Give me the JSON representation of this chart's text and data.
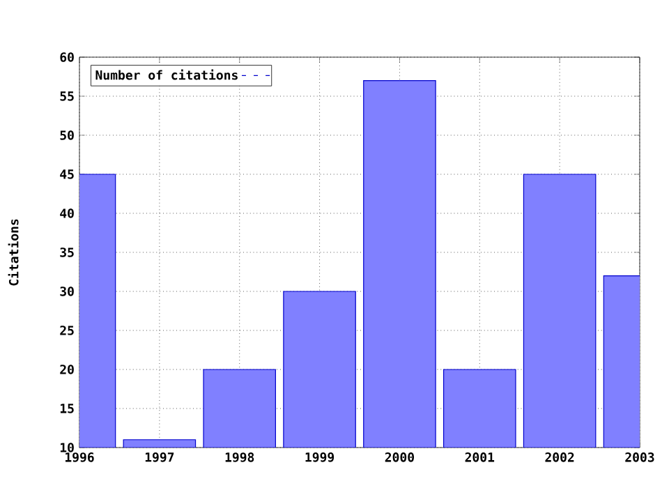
{
  "chart_data": {
    "type": "bar",
    "ylabel": "Citations",
    "x": [
      1996,
      1997,
      1998,
      1999,
      2000,
      2001,
      2002,
      2003
    ],
    "series": [
      {
        "name": "Number of citations",
        "color": "#8080ff",
        "values": [
          45,
          11,
          20,
          30,
          57,
          20,
          45,
          32
        ]
      }
    ],
    "xlim": [
      1996,
      2003
    ],
    "ylim": [
      10,
      60
    ],
    "xticks": [
      1996,
      1997,
      1998,
      1999,
      2000,
      2001,
      2002,
      2003
    ],
    "yticks": [
      10,
      15,
      20,
      25,
      30,
      35,
      40,
      45,
      50,
      55,
      60
    ],
    "grid": true,
    "legend": "top left"
  }
}
